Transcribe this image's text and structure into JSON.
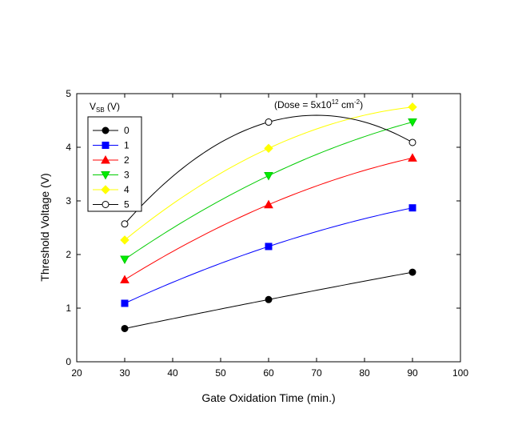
{
  "chart_data": {
    "type": "line",
    "title": "",
    "xlabel": "Gate Oxidation Time (min.)",
    "ylabel": "Threshold Voltage (V)",
    "xlim": [
      20,
      100
    ],
    "ylim": [
      0,
      5
    ],
    "x_ticks": [
      "20",
      "30",
      "40",
      "50",
      "60",
      "70",
      "80",
      "90",
      "100"
    ],
    "y_ticks": [
      "0",
      "1",
      "2",
      "3",
      "4",
      "5"
    ],
    "grid": false,
    "legend_title_main": "V",
    "legend_title_sub": "SB",
    "legend_title_unit": " (V)",
    "legend_placement": "top-left",
    "annotation": {
      "prefix": "(Dose = 5x10",
      "exponent": "12",
      "unit": " cm",
      "unit_exponent": "-2",
      "suffix": ")"
    },
    "x": [
      30,
      60,
      90
    ],
    "series": [
      {
        "name": "0",
        "values": [
          0.62,
          1.16,
          1.67
        ],
        "color": "#000000",
        "marker": "circle",
        "fill": "#000000"
      },
      {
        "name": "1",
        "values": [
          1.09,
          2.15,
          2.87
        ],
        "color": "#0000ff",
        "marker": "square",
        "fill": "#0000ff"
      },
      {
        "name": "2",
        "values": [
          1.53,
          2.93,
          3.8
        ],
        "color": "#ff0000",
        "marker": "triangle-up",
        "fill": "#ff0000"
      },
      {
        "name": "3",
        "values": [
          1.91,
          3.47,
          4.47
        ],
        "color": "#00cc00",
        "marker": "triangle-down",
        "fill": "#00ee00"
      },
      {
        "name": "4",
        "values": [
          2.27,
          3.98,
          4.75
        ],
        "color": "#ffff00",
        "marker": "diamond",
        "fill": "#ffff00"
      },
      {
        "name": "5",
        "values": [
          2.57,
          4.47,
          4.09
        ],
        "color": "#000000",
        "marker": "circle-open",
        "fill": "#ffffff"
      }
    ]
  }
}
